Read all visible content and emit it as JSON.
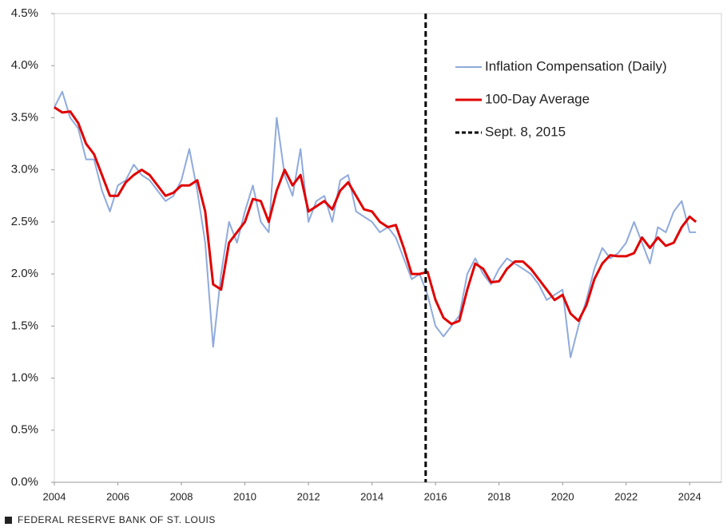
{
  "chart_data": {
    "type": "line",
    "x": [
      2004,
      2004.25,
      2004.5,
      2004.75,
      2005,
      2005.25,
      2005.5,
      2005.75,
      2006,
      2006.25,
      2006.5,
      2006.75,
      2007,
      2007.25,
      2007.5,
      2007.75,
      2008,
      2008.25,
      2008.5,
      2008.75,
      2009,
      2009.25,
      2009.5,
      2009.75,
      2010,
      2010.25,
      2010.5,
      2010.75,
      2011,
      2011.25,
      2011.5,
      2011.75,
      2012,
      2012.25,
      2012.5,
      2012.75,
      2013,
      2013.25,
      2013.5,
      2013.75,
      2014,
      2014.25,
      2014.5,
      2014.75,
      2015,
      2015.25,
      2015.5,
      2015.75,
      2016,
      2016.25,
      2016.5,
      2016.75,
      2017,
      2017.25,
      2017.5,
      2017.75,
      2018,
      2018.25,
      2018.5,
      2018.75,
      2019,
      2019.25,
      2019.5,
      2019.75,
      2020,
      2020.25,
      2020.5,
      2020.75,
      2021,
      2021.25,
      2021.5,
      2021.75,
      2022,
      2022.25,
      2022.5,
      2022.75,
      2023,
      2023.25,
      2023.5,
      2023.75,
      2024,
      2024.2
    ],
    "series": [
      {
        "name": "Inflation Compensation (Daily)",
        "color": "#8faadc",
        "width": 2,
        "values": [
          3.6,
          3.75,
          3.5,
          3.4,
          3.1,
          3.1,
          2.8,
          2.6,
          2.85,
          2.9,
          3.05,
          2.95,
          2.9,
          2.8,
          2.7,
          2.75,
          2.9,
          3.2,
          2.8,
          2.3,
          1.3,
          2.0,
          2.5,
          2.3,
          2.6,
          2.85,
          2.5,
          2.4,
          3.5,
          2.95,
          2.75,
          3.2,
          2.5,
          2.7,
          2.75,
          2.5,
          2.9,
          2.95,
          2.6,
          2.55,
          2.5,
          2.4,
          2.45,
          2.35,
          2.15,
          1.95,
          2.0,
          1.8,
          1.5,
          1.4,
          1.5,
          1.6,
          2.0,
          2.15,
          2.0,
          1.9,
          2.05,
          2.15,
          2.1,
          2.05,
          2.0,
          1.9,
          1.75,
          1.8,
          1.85,
          1.2,
          1.5,
          1.75,
          2.05,
          2.25,
          2.15,
          2.2,
          2.3,
          2.5,
          2.3,
          2.1,
          2.45,
          2.4,
          2.6,
          2.7,
          2.4,
          2.4
        ]
      },
      {
        "name": "100-Day Average",
        "color": "#e00000",
        "width": 3,
        "values": [
          3.6,
          3.55,
          3.56,
          3.45,
          3.25,
          3.15,
          2.95,
          2.75,
          2.75,
          2.88,
          2.95,
          3.0,
          2.95,
          2.85,
          2.75,
          2.78,
          2.85,
          2.85,
          2.9,
          2.6,
          1.9,
          1.85,
          2.3,
          2.4,
          2.5,
          2.72,
          2.7,
          2.5,
          2.8,
          3.0,
          2.85,
          2.95,
          2.6,
          2.65,
          2.7,
          2.62,
          2.8,
          2.88,
          2.75,
          2.62,
          2.6,
          2.5,
          2.45,
          2.47,
          2.25,
          2.0,
          2.0,
          2.02,
          1.75,
          1.58,
          1.52,
          1.55,
          1.85,
          2.1,
          2.05,
          1.92,
          1.93,
          2.05,
          2.12,
          2.12,
          2.05,
          1.95,
          1.85,
          1.75,
          1.8,
          1.62,
          1.55,
          1.7,
          1.95,
          2.1,
          2.18,
          2.17,
          2.17,
          2.2,
          2.35,
          2.25,
          2.35,
          2.27,
          2.3,
          2.45,
          2.55,
          2.5
        ]
      }
    ],
    "vline": {
      "x": 2015.69,
      "name": "Sept. 8, 2015",
      "color": "#000000"
    },
    "xlim": [
      2004,
      2025
    ],
    "xticks": [
      2004,
      2006,
      2008,
      2010,
      2012,
      2014,
      2016,
      2018,
      2020,
      2022,
      2024
    ],
    "ylim": [
      0,
      4.5
    ],
    "yticks": [
      {
        "value": 0,
        "label": "0.0%"
      },
      {
        "value": 0.5,
        "label": "0.5%"
      },
      {
        "value": 1,
        "label": "1.0%"
      },
      {
        "value": 1.5,
        "label": "1.5%"
      },
      {
        "value": 2,
        "label": "2.0%"
      },
      {
        "value": 2.5,
        "label": "2.5%"
      },
      {
        "value": 3,
        "label": "3.0%"
      },
      {
        "value": 3.5,
        "label": "3.5%"
      },
      {
        "value": 4,
        "label": "4.0%"
      },
      {
        "value": 4.5,
        "label": "4.5%"
      }
    ],
    "legend": "upper right",
    "source": "FEDERAL RESERVE BANK OF ST. LOUIS"
  }
}
